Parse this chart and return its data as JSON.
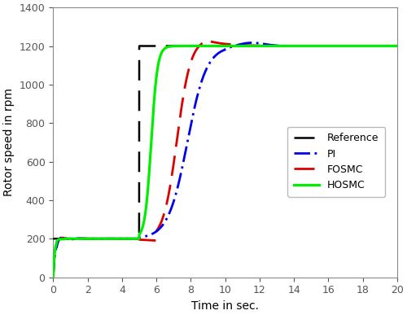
{
  "xlabel": "Time in sec.",
  "ylabel": "Rotor speed in rpm",
  "xlim": [
    0,
    20
  ],
  "ylim": [
    0,
    1400
  ],
  "xticks": [
    0,
    2,
    4,
    6,
    8,
    10,
    12,
    14,
    16,
    18,
    20
  ],
  "yticks": [
    0,
    200,
    400,
    600,
    800,
    1000,
    1200,
    1400
  ],
  "colors": {
    "reference": "#000000",
    "PI": "#0000ee",
    "FOSMC": "#dd0000",
    "HOSMC": "#00ee00"
  },
  "background": "#ffffff"
}
